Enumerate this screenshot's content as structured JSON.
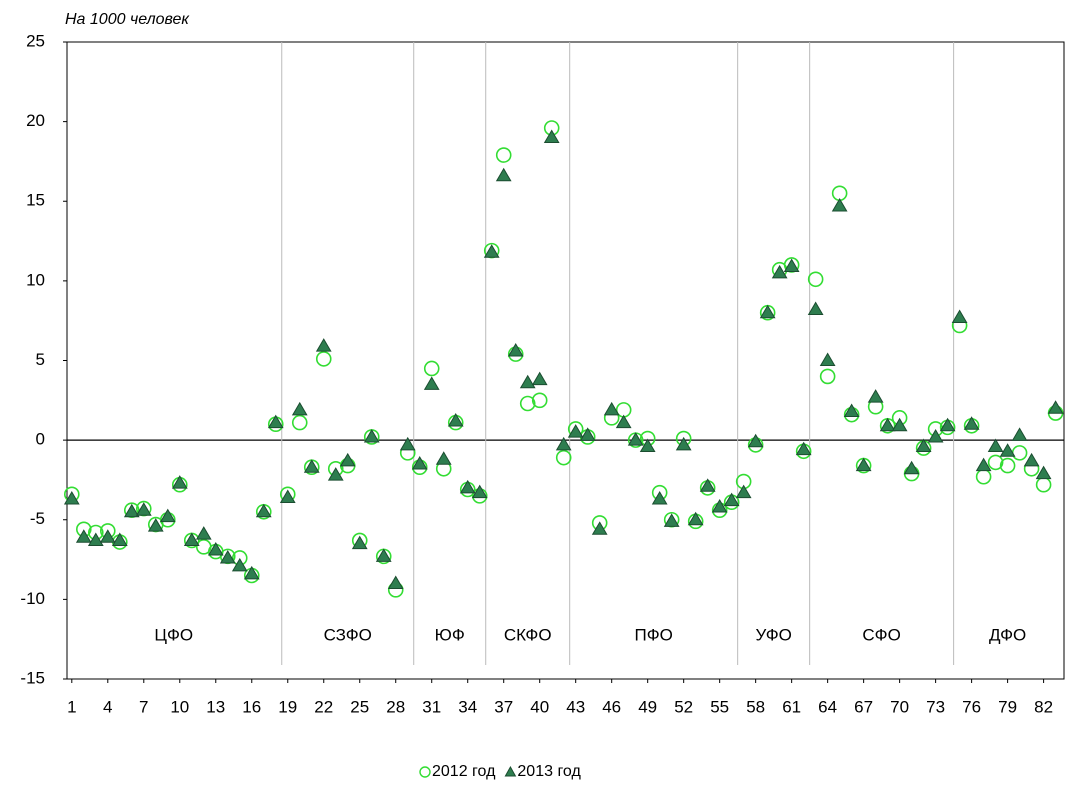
{
  "chart_data": {
    "type": "scatter",
    "title": "На 1000 человек",
    "x": [
      1,
      2,
      3,
      4,
      5,
      6,
      7,
      8,
      9,
      10,
      11,
      12,
      13,
      14,
      15,
      16,
      17,
      18,
      19,
      20,
      21,
      22,
      23,
      24,
      25,
      26,
      27,
      28,
      29,
      30,
      31,
      32,
      33,
      34,
      35,
      36,
      37,
      38,
      39,
      40,
      41,
      42,
      43,
      44,
      45,
      46,
      47,
      48,
      49,
      50,
      51,
      52,
      53,
      54,
      55,
      56,
      57,
      58,
      59,
      60,
      61,
      62,
      63,
      64,
      65,
      66,
      67,
      68,
      69,
      70,
      71,
      72,
      73,
      74,
      75,
      76,
      77,
      78,
      79,
      80,
      81,
      82,
      83
    ],
    "series": [
      {
        "name": "2012 год",
        "color": "#33dd33",
        "marker": "circle",
        "values": [
          -3.4,
          -5.6,
          -5.8,
          -5.7,
          -6.4,
          -4.4,
          -4.3,
          -5.3,
          -5.0,
          -2.8,
          -6.3,
          -6.7,
          -7.0,
          -7.3,
          -7.4,
          -8.5,
          -4.5,
          1.0,
          -3.4,
          1.1,
          -1.7,
          5.1,
          -1.8,
          -1.6,
          -6.3,
          0.2,
          -7.3,
          -9.4,
          -0.8,
          -1.7,
          4.5,
          -1.8,
          1.1,
          -3.1,
          -3.5,
          11.9,
          17.9,
          5.4,
          2.3,
          2.5,
          19.6,
          -1.1,
          0.7,
          0.2,
          -5.2,
          1.4,
          1.9,
          0.0,
          0.1,
          -3.3,
          -5.0,
          0.1,
          -5.1,
          -3.0,
          -4.4,
          -3.9,
          -2.6,
          -0.3,
          8.0,
          10.7,
          11.0,
          -0.7,
          10.1,
          4.0,
          15.5,
          1.6,
          -1.6,
          2.1,
          0.9,
          1.4,
          -2.1,
          -0.5,
          0.7,
          0.8,
          7.2,
          0.9,
          -2.3,
          -1.4,
          -1.6,
          -0.8,
          -1.8,
          -2.8,
          1.7
        ]
      },
      {
        "name": "2013 год",
        "color": "#2e7d4f",
        "marker": "triangle",
        "values": [
          -3.7,
          -6.1,
          -6.3,
          -6.1,
          -6.3,
          -4.5,
          -4.4,
          -5.4,
          -4.8,
          -2.7,
          -6.3,
          -5.9,
          -6.9,
          -7.4,
          -7.9,
          -8.4,
          -4.5,
          1.1,
          -3.6,
          1.9,
          -1.7,
          5.9,
          -2.2,
          -1.3,
          -6.5,
          0.2,
          -7.3,
          -9.0,
          -0.3,
          -1.5,
          3.5,
          -1.2,
          1.2,
          -3.0,
          -3.3,
          11.8,
          16.6,
          5.6,
          3.6,
          3.8,
          19.0,
          -0.3,
          0.5,
          0.3,
          -5.6,
          1.9,
          1.1,
          0.0,
          -0.4,
          -3.7,
          -5.1,
          -0.3,
          -5.0,
          -2.9,
          -4.2,
          -3.8,
          -3.3,
          -0.1,
          8.0,
          10.5,
          10.9,
          -0.6,
          8.2,
          5.0,
          14.7,
          1.8,
          -1.6,
          2.7,
          0.9,
          0.9,
          -1.8,
          -0.4,
          0.2,
          0.9,
          7.7,
          1.0,
          -1.6,
          -0.4,
          -0.7,
          0.3,
          -1.3,
          -2.1,
          2.0
        ]
      }
    ],
    "groups": [
      {
        "label": "ЦФО",
        "from": 1,
        "to": 18
      },
      {
        "label": "СЗФО",
        "from": 19,
        "to": 29
      },
      {
        "label": "ЮФ",
        "from": 30,
        "to": 35
      },
      {
        "label": "СКФО",
        "from": 36,
        "to": 42
      },
      {
        "label": "ПФО",
        "from": 43,
        "to": 56
      },
      {
        "label": "УФО",
        "from": 57,
        "to": 62
      },
      {
        "label": "СФО",
        "from": 63,
        "to": 74
      },
      {
        "label": "ДФО",
        "from": 75,
        "to": 83
      }
    ],
    "xlim": [
      0.6,
      83.7
    ],
    "xticks": [
      1,
      4,
      7,
      10,
      13,
      16,
      19,
      22,
      25,
      28,
      31,
      34,
      37,
      40,
      43,
      46,
      49,
      52,
      55,
      58,
      61,
      64,
      67,
      70,
      73,
      76,
      79,
      82
    ],
    "ylim": [
      -15,
      25
    ],
    "yticks": [
      -15,
      -10,
      -5,
      0,
      5,
      10,
      15,
      20,
      25
    ],
    "legend": "bottom"
  }
}
